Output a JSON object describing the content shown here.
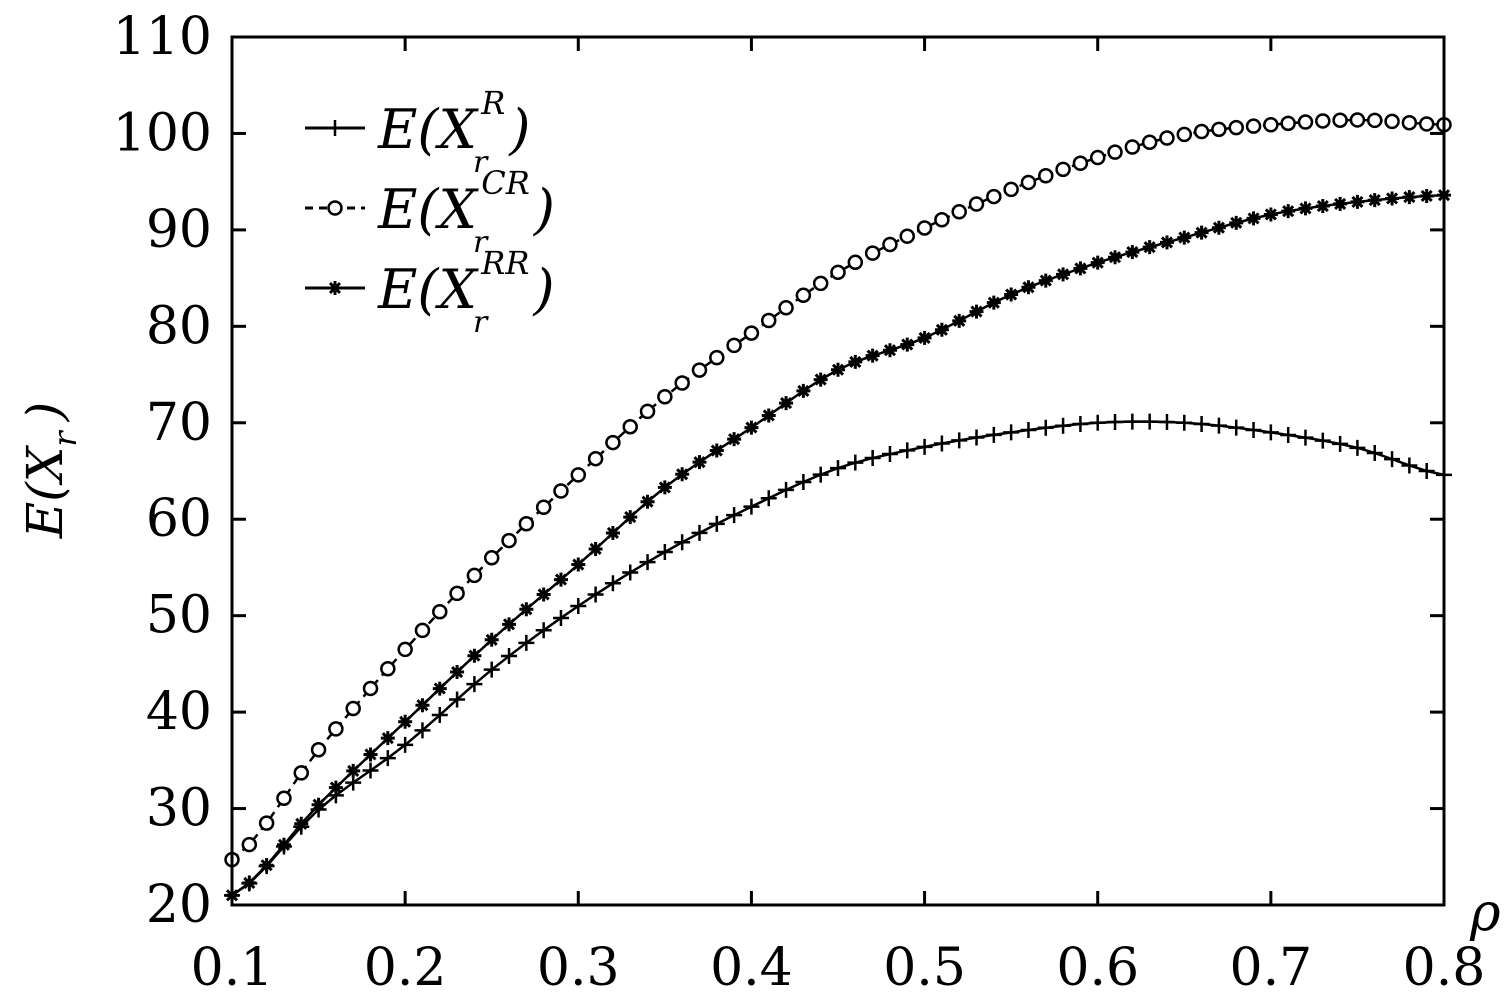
{
  "chart_data": {
    "type": "line",
    "title": "",
    "xlabel": "ρ",
    "ylabel": {
      "prefix": "E(",
      "main": "X",
      "sub": "r",
      "suffix": ")"
    },
    "xlim": [
      0.1,
      0.8
    ],
    "ylim": [
      20,
      110
    ],
    "xticks": [
      "0.1",
      "0.2",
      "0.3",
      "0.4",
      "0.5",
      "0.6",
      "0.7",
      "0.8"
    ],
    "yticks": [
      "20",
      "30",
      "40",
      "50",
      "60",
      "70",
      "80",
      "90",
      "100",
      "110"
    ],
    "grid": false,
    "legend_position": "top-left",
    "x": [
      0.1,
      0.15,
      0.2,
      0.25,
      0.3,
      0.35,
      0.4,
      0.45,
      0.5,
      0.55,
      0.6,
      0.65,
      0.7,
      0.75,
      0.8
    ],
    "series": [
      {
        "name": "E(X_r^R)",
        "legend": {
          "prefix": "E(X",
          "sub": "r",
          "sup": "R",
          "suffix": ")"
        },
        "marker": "plus",
        "line": "solid",
        "values": [
          21,
          29.9,
          36.6,
          44.4,
          51,
          56.6,
          61.3,
          65.3,
          67.5,
          69,
          70,
          70,
          69,
          67.4,
          64.6
        ]
      },
      {
        "name": "E(X_r^CR)",
        "legend": {
          "prefix": "E(X",
          "sub": "r",
          "sup": "CR",
          "suffix": ")"
        },
        "marker": "circle",
        "line": "dashed",
        "values": [
          24.7,
          36.1,
          46.5,
          56,
          64.6,
          72.7,
          79.3,
          85.6,
          90.2,
          94.2,
          97.5,
          99.9,
          100.9,
          101.4,
          100.9
        ]
      },
      {
        "name": "E(X_r^RR)",
        "legend": {
          "prefix": "E(X",
          "sub": "r",
          "sup": "RR",
          "suffix": ")"
        },
        "marker": "star",
        "line": "solid",
        "values": [
          21,
          30.4,
          39,
          47.5,
          55.3,
          63.3,
          69.5,
          75.5,
          78.8,
          83.3,
          86.6,
          89.2,
          91.6,
          92.9,
          93.6
        ]
      }
    ]
  }
}
